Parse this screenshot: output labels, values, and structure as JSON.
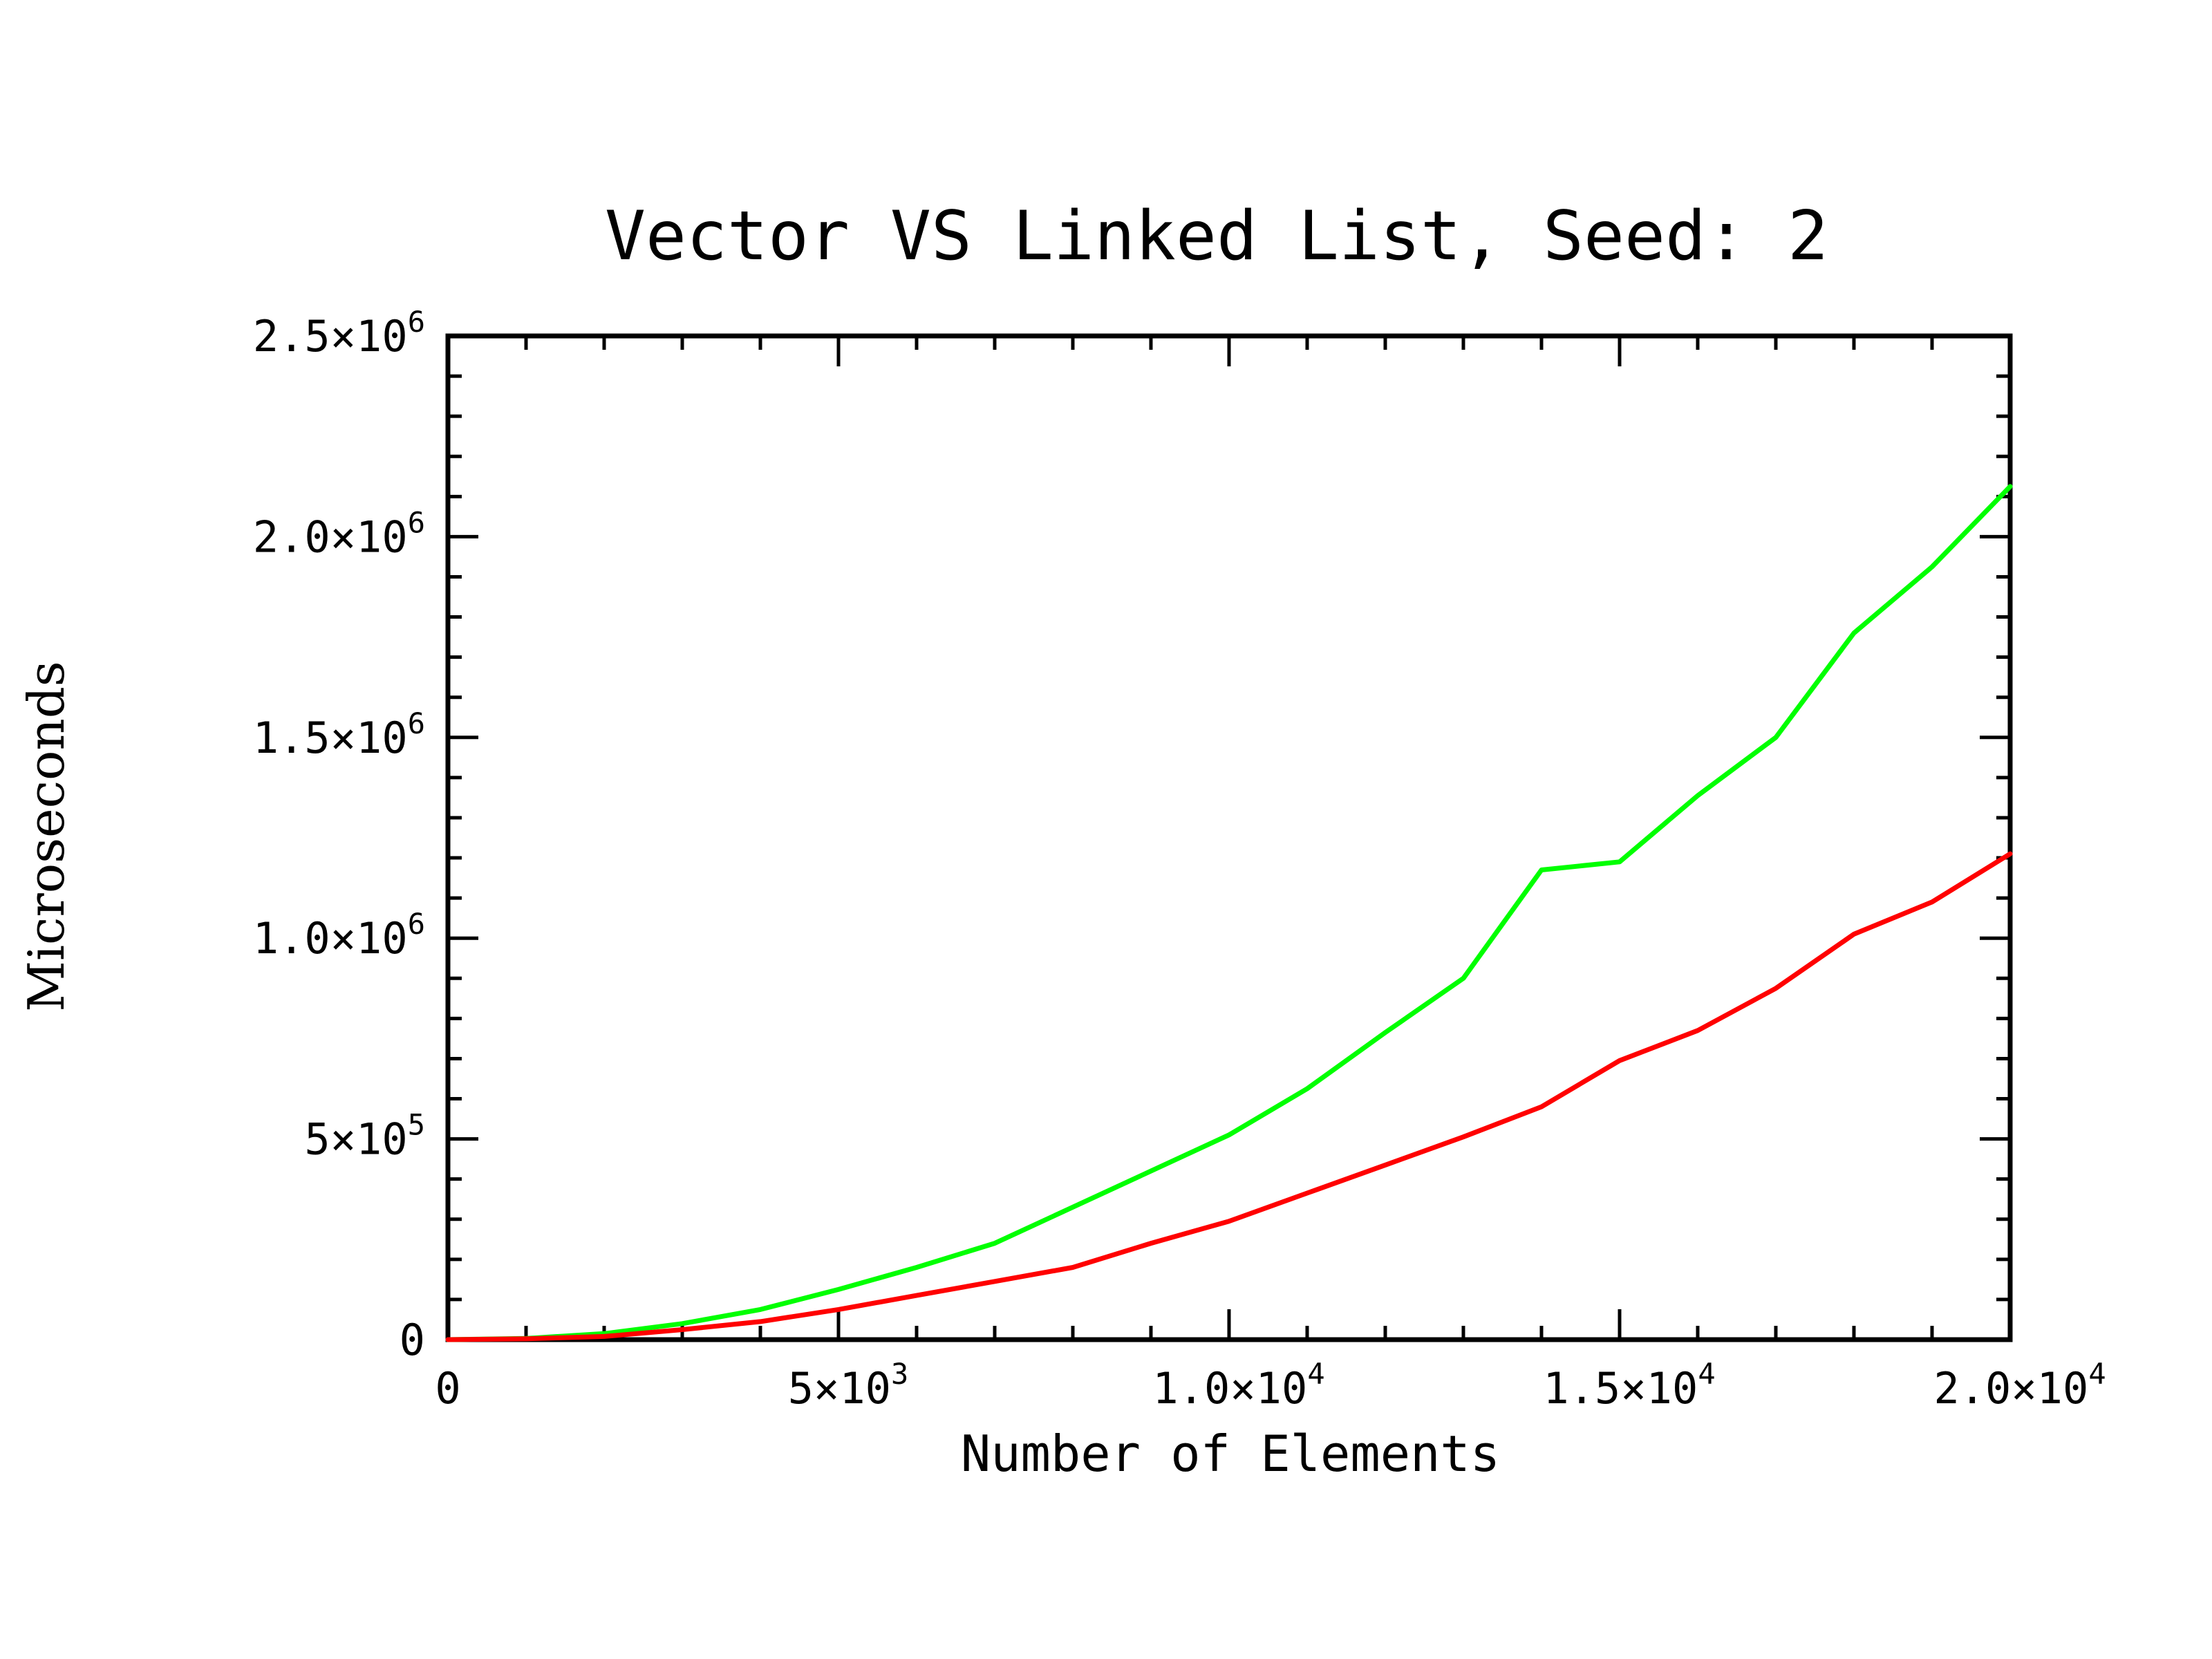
{
  "chart_data": {
    "type": "line",
    "title": "Vector VS Linked List, Seed: 2",
    "xlabel": "Number of Elements",
    "ylabel": "Microseconds",
    "xlim": [
      0,
      20000
    ],
    "ylim": [
      0,
      2500000
    ],
    "x_ticks": [
      {
        "value": 0,
        "mantissa": "0",
        "exp": ""
      },
      {
        "value": 5000,
        "mantissa": "5×10",
        "exp": "3"
      },
      {
        "value": 10000,
        "mantissa": "1.0×10",
        "exp": "4"
      },
      {
        "value": 15000,
        "mantissa": "1.5×10",
        "exp": "4"
      },
      {
        "value": 20000,
        "mantissa": "2.0×10",
        "exp": "4"
      }
    ],
    "y_ticks": [
      {
        "value": 0,
        "mantissa": "0",
        "exp": ""
      },
      {
        "value": 500000,
        "mantissa": "5×10",
        "exp": "5"
      },
      {
        "value": 1000000,
        "mantissa": "1.0×10",
        "exp": "6"
      },
      {
        "value": 1500000,
        "mantissa": "1.5×10",
        "exp": "6"
      },
      {
        "value": 2000000,
        "mantissa": "2.0×10",
        "exp": "6"
      },
      {
        "value": 2500000,
        "mantissa": "2.5×10",
        "exp": "6"
      }
    ],
    "grid": false,
    "x": [
      0,
      1000,
      2000,
      3000,
      4000,
      5000,
      6000,
      7000,
      8000,
      9000,
      10000,
      11000,
      12000,
      13000,
      14000,
      15000,
      16000,
      17000,
      18000,
      19000,
      20000
    ],
    "series": [
      {
        "color": "#00ff00",
        "values": [
          0,
          3000,
          15000,
          40000,
          75000,
          125000,
          180000,
          240000,
          330000,
          420000,
          510000,
          625000,
          765000,
          900000,
          1170000,
          1190000,
          1355000,
          1500000,
          1760000,
          1925000,
          2125000
        ]
      },
      {
        "color": "#ff0000",
        "values": [
          0,
          2000,
          8000,
          25000,
          45000,
          75000,
          110000,
          145000,
          180000,
          240000,
          295000,
          365000,
          435000,
          505000,
          580000,
          695000,
          770000,
          875000,
          1010000,
          1090000,
          1210000
        ]
      }
    ]
  }
}
